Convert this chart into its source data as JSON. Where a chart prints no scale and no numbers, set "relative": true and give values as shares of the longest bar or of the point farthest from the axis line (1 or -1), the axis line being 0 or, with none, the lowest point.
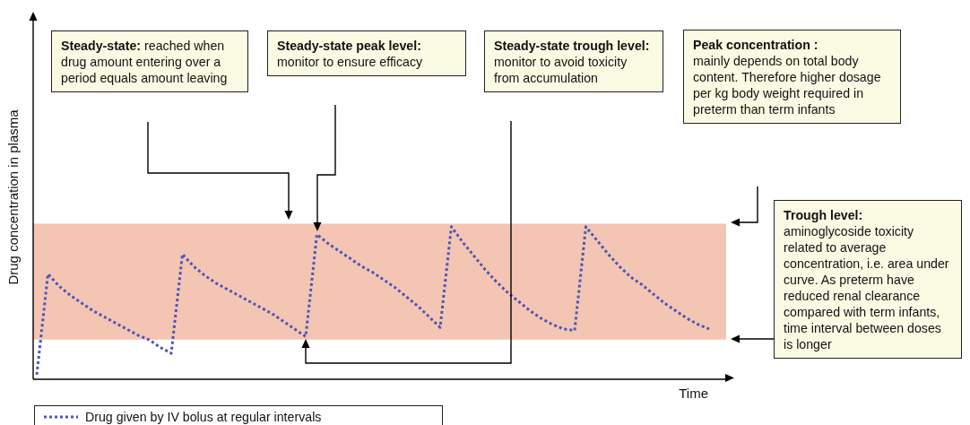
{
  "chart_data": {
    "type": "line",
    "xlabel": "Time",
    "ylabel": "Drug concentration in plasma",
    "relative": true,
    "legend": "bottom left",
    "marker": "none",
    "line_style": "dotted",
    "grid": false,
    "categories": [
      null,
      null,
      null,
      null,
      null,
      null,
      null,
      null,
      null,
      null,
      null,
      null,
      null,
      null,
      null,
      null,
      null,
      null,
      null,
      null,
      null,
      null,
      null,
      null,
      null,
      null,
      null,
      null,
      null,
      null,
      null,
      null,
      null,
      null,
      null,
      null,
      null,
      null,
      null,
      null,
      null,
      null,
      null,
      null,
      null,
      null,
      null,
      null,
      null,
      null,
      null,
      null,
      null,
      null,
      null,
      null,
      null,
      null,
      null,
      null,
      null
    ],
    "series": [
      {
        "name": "Drug given by IV bolus at regular intervals",
        "color": "#4a56b8",
        "values": [
          0.03,
          0.69,
          0.61,
          0.55,
          0.5,
          0.45,
          0.41,
          0.37,
          0.33,
          0.29,
          0.26,
          0.21,
          0.17,
          0.82,
          0.74,
          0.68,
          0.63,
          0.59,
          0.55,
          0.51,
          0.47,
          0.43,
          0.38,
          0.33,
          0.28,
          0.95,
          0.89,
          0.84,
          0.79,
          0.74,
          0.7,
          0.65,
          0.6,
          0.54,
          0.48,
          0.41,
          0.34,
          1,
          0.9,
          0.81,
          0.72,
          0.64,
          0.57,
          0.51,
          0.45,
          0.4,
          0.36,
          0.33,
          0.32,
          1,
          0.91,
          0.82,
          0.74,
          0.67,
          0.62,
          0.56,
          0.5,
          0.45,
          0.4,
          0.36,
          0.33
        ]
      }
    ],
    "bands": [
      {
        "axis": "y",
        "from": 0.26,
        "to": 1.02,
        "color": "#f4c5b3"
      }
    ],
    "annotations": [
      "Steady-state: reached when drug amount entering over a period equals amount leaving",
      "Steady-state peak level: monitor to ensure efficacy",
      "Steady-state trough level: monitor to avoid toxicity from accumulation",
      "Peak concentration : mainly depends on total body content. Therefore higher dosage per kg body weight required in preterm than term infants",
      "Trough level: aminoglycoside toxicity related to average concentration, i.e. area under curve. As preterm have reduced renal clearance compared with term infants, time interval between doses is longer"
    ]
  }
}
